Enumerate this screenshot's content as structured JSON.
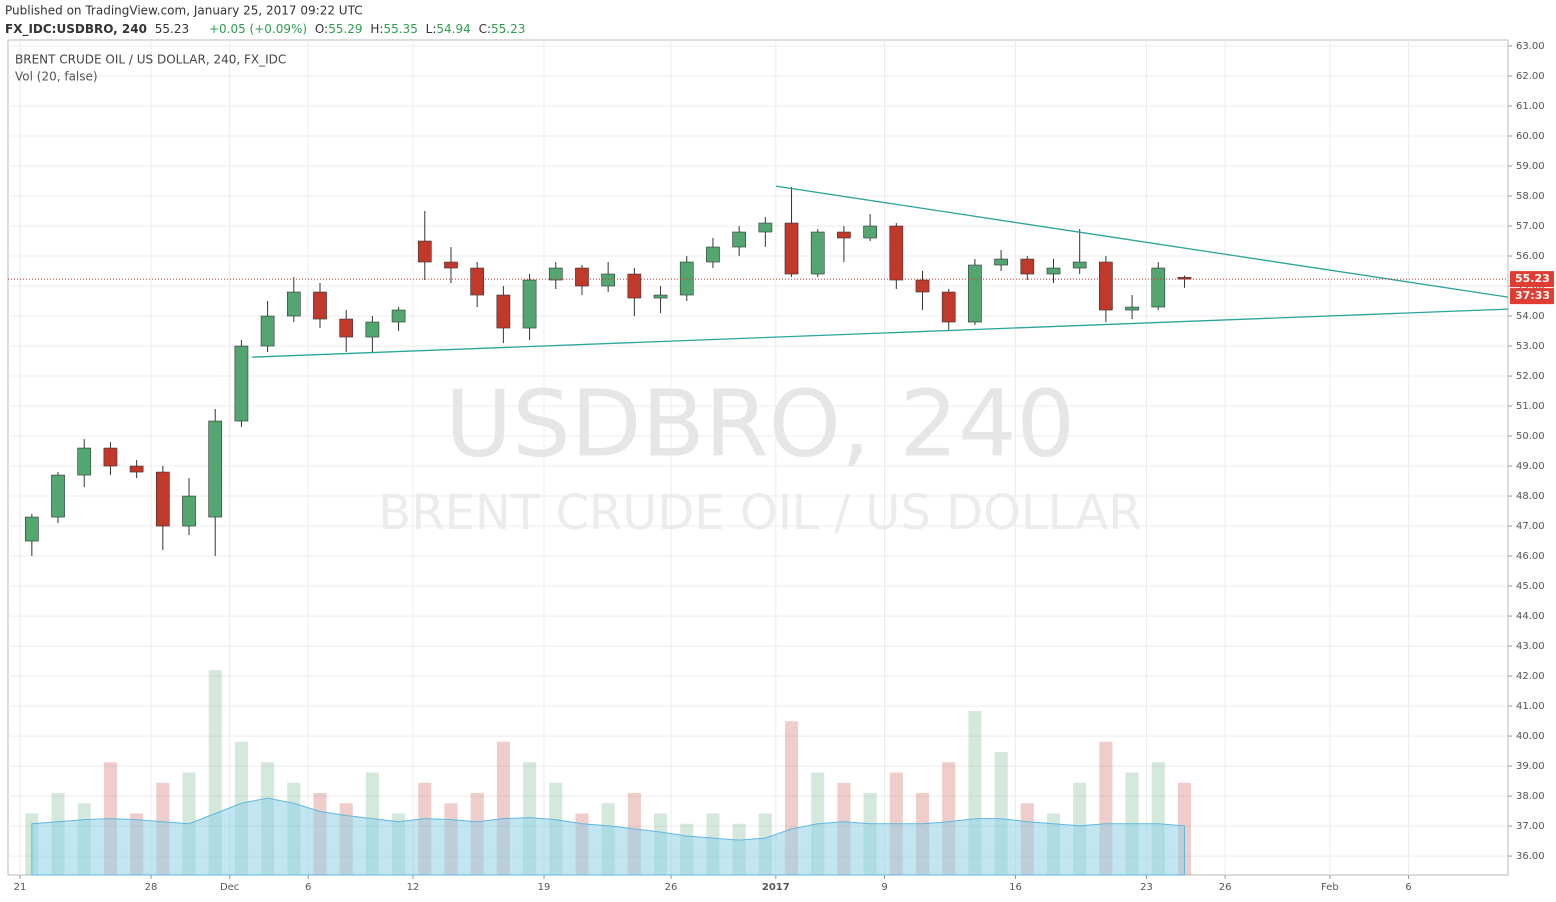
{
  "header": {
    "published": "Published on TradingView.com, January 25, 2017 09:22 UTC",
    "symbol": "FX_IDC:USDBRO, 240",
    "last": 55.23,
    "change": "+0.05 (+0.09%)",
    "ohlc": [
      {
        "label": "O:",
        "value": 55.29
      },
      {
        "label": "H:",
        "value": 55.35
      },
      {
        "label": "L:",
        "value": 54.94
      },
      {
        "label": "C:",
        "value": 55.23
      }
    ]
  },
  "chart_data": {
    "type": "candlestick",
    "title": "BRENT CRUDE OIL / US DOLLAR, 240, FX_IDC",
    "subtitle": "Vol (20, false)",
    "watermark": [
      "USDBRO, 240",
      "BRENT CRUDE OIL / US DOLLAR"
    ],
    "up_color": "#53a66f",
    "down_color": "#c0392b",
    "candles": [
      {
        "x": 0.45,
        "open": 46.5,
        "high": 47.4,
        "low": 46.0,
        "close": 47.3,
        "volume": 60
      },
      {
        "x": 1.45,
        "open": 47.3,
        "high": 48.8,
        "low": 47.1,
        "close": 48.7,
        "volume": 80
      },
      {
        "x": 2.45,
        "open": 48.7,
        "high": 49.9,
        "low": 48.3,
        "close": 49.6,
        "volume": 70
      },
      {
        "x": 3.45,
        "open": 49.6,
        "high": 49.8,
        "low": 48.7,
        "close": 49.0,
        "volume": 110
      },
      {
        "x": 4.45,
        "open": 49.0,
        "high": 49.2,
        "low": 48.6,
        "close": 48.8,
        "volume": 60
      },
      {
        "x": 5.45,
        "open": 48.8,
        "high": 49.0,
        "low": 46.2,
        "close": 47.0,
        "volume": 90
      },
      {
        "x": 6.45,
        "open": 47.0,
        "high": 48.6,
        "low": 46.7,
        "close": 48.0,
        "volume": 100
      },
      {
        "x": 7.45,
        "open": 47.3,
        "high": 50.9,
        "low": 46.0,
        "close": 50.5,
        "volume": 200
      },
      {
        "x": 8.45,
        "open": 50.5,
        "high": 53.2,
        "low": 50.3,
        "close": 53.0,
        "volume": 130
      },
      {
        "x": 9.45,
        "open": 53.0,
        "high": 54.5,
        "low": 52.8,
        "close": 54.0,
        "volume": 110
      },
      {
        "x": 10.45,
        "open": 54.0,
        "high": 55.3,
        "low": 53.8,
        "close": 54.8,
        "volume": 90
      },
      {
        "x": 11.45,
        "open": 54.8,
        "high": 55.1,
        "low": 53.6,
        "close": 53.9,
        "volume": 80
      },
      {
        "x": 12.45,
        "open": 53.9,
        "high": 54.2,
        "low": 52.8,
        "close": 53.3,
        "volume": 70
      },
      {
        "x": 13.45,
        "open": 53.3,
        "high": 54.0,
        "low": 52.8,
        "close": 53.8,
        "volume": 100
      },
      {
        "x": 14.45,
        "open": 53.8,
        "high": 54.3,
        "low": 53.5,
        "close": 54.2,
        "volume": 60
      },
      {
        "x": 15.45,
        "open": 56.5,
        "high": 57.5,
        "low": 55.2,
        "close": 55.8,
        "volume": 90
      },
      {
        "x": 16.45,
        "open": 55.8,
        "high": 56.3,
        "low": 55.1,
        "close": 55.6,
        "volume": 70
      },
      {
        "x": 17.45,
        "open": 55.6,
        "high": 55.8,
        "low": 54.3,
        "close": 54.7,
        "volume": 80
      },
      {
        "x": 18.45,
        "open": 54.7,
        "high": 55.0,
        "low": 53.1,
        "close": 53.6,
        "volume": 130
      },
      {
        "x": 19.45,
        "open": 53.6,
        "high": 55.4,
        "low": 53.2,
        "close": 55.2,
        "volume": 110
      },
      {
        "x": 20.45,
        "open": 55.2,
        "high": 55.8,
        "low": 54.9,
        "close": 55.6,
        "volume": 90
      },
      {
        "x": 21.45,
        "open": 55.6,
        "high": 55.7,
        "low": 54.7,
        "close": 55.0,
        "volume": 60
      },
      {
        "x": 22.45,
        "open": 55.0,
        "high": 55.8,
        "low": 54.8,
        "close": 55.4,
        "volume": 70
      },
      {
        "x": 23.45,
        "open": 55.4,
        "high": 55.6,
        "low": 54.0,
        "close": 54.6,
        "volume": 80
      },
      {
        "x": 24.45,
        "open": 54.6,
        "high": 55.0,
        "low": 54.1,
        "close": 54.7,
        "volume": 60
      },
      {
        "x": 25.45,
        "open": 54.7,
        "high": 56.0,
        "low": 54.5,
        "close": 55.8,
        "volume": 50
      },
      {
        "x": 26.45,
        "open": 55.8,
        "high": 56.6,
        "low": 55.6,
        "close": 56.3,
        "volume": 60
      },
      {
        "x": 27.45,
        "open": 56.3,
        "high": 57.0,
        "low": 56.0,
        "close": 56.8,
        "volume": 50
      },
      {
        "x": 28.45,
        "open": 56.8,
        "high": 57.3,
        "low": 56.3,
        "close": 57.1,
        "volume": 60
      },
      {
        "x": 29.45,
        "open": 57.1,
        "high": 58.3,
        "low": 55.3,
        "close": 55.4,
        "volume": 150
      },
      {
        "x": 30.45,
        "open": 55.4,
        "high": 56.9,
        "low": 55.3,
        "close": 56.8,
        "volume": 100
      },
      {
        "x": 31.45,
        "open": 56.8,
        "high": 57.0,
        "low": 55.8,
        "close": 56.6,
        "volume": 90
      },
      {
        "x": 32.45,
        "open": 56.6,
        "high": 57.4,
        "low": 56.5,
        "close": 57.0,
        "volume": 80
      },
      {
        "x": 33.45,
        "open": 57.0,
        "high": 57.1,
        "low": 54.9,
        "close": 55.2,
        "volume": 100
      },
      {
        "x": 34.45,
        "open": 55.2,
        "high": 55.5,
        "low": 54.2,
        "close": 54.8,
        "volume": 80
      },
      {
        "x": 35.45,
        "open": 54.8,
        "high": 54.9,
        "low": 53.5,
        "close": 53.8,
        "volume": 110
      },
      {
        "x": 36.45,
        "open": 53.8,
        "high": 55.9,
        "low": 53.7,
        "close": 55.7,
        "volume": 160
      },
      {
        "x": 37.45,
        "open": 55.7,
        "high": 56.2,
        "low": 55.5,
        "close": 55.9,
        "volume": 120
      },
      {
        "x": 38.45,
        "open": 55.9,
        "high": 56.0,
        "low": 55.2,
        "close": 55.4,
        "volume": 70
      },
      {
        "x": 39.45,
        "open": 55.4,
        "high": 55.9,
        "low": 55.1,
        "close": 55.6,
        "volume": 60
      },
      {
        "x": 40.45,
        "open": 55.6,
        "high": 56.9,
        "low": 55.4,
        "close": 55.8,
        "volume": 90
      },
      {
        "x": 41.45,
        "open": 55.8,
        "high": 56.0,
        "low": 53.8,
        "close": 54.2,
        "volume": 130
      },
      {
        "x": 42.45,
        "open": 54.2,
        "high": 54.7,
        "low": 53.9,
        "close": 54.3,
        "volume": 100
      },
      {
        "x": 43.45,
        "open": 54.3,
        "high": 55.8,
        "low": 54.2,
        "close": 55.6,
        "volume": 110
      },
      {
        "x": 44.45,
        "open": 55.29,
        "high": 55.35,
        "low": 54.94,
        "close": 55.23,
        "volume": 90
      }
    ],
    "volume_ma": [
      50,
      52,
      54,
      55,
      54,
      52,
      50,
      60,
      70,
      75,
      70,
      62,
      58,
      55,
      52,
      55,
      54,
      52,
      55,
      56,
      54,
      50,
      48,
      45,
      42,
      38,
      36,
      34,
      36,
      45,
      50,
      52,
      50,
      50,
      50,
      52,
      55,
      55,
      52,
      50,
      48,
      50,
      50,
      50,
      48
    ],
    "volume_color": "#8fcfe8",
    "trendlines": [
      {
        "x": [
          28.85,
          56.8
        ],
        "y": [
          58.33,
          54.63
        ],
        "color": "#2aa59a"
      },
      {
        "x": [
          8.85,
          56.8
        ],
        "y": [
          52.63,
          54.23
        ],
        "color": "#2aa59a"
      }
    ],
    "last_price": {
      "value": 55.23,
      "label": "55.23"
    },
    "countdown": "37:33",
    "xlim": [
      -0.46,
      56.8
    ],
    "ylim": [
      35.37,
      63.2
    ],
    "grid": true,
    "xticks": [
      {
        "value": 0,
        "label": "21"
      },
      {
        "value": 5,
        "label": "28"
      },
      {
        "value": 8,
        "label": "Dec"
      },
      {
        "value": 11,
        "label": "6"
      },
      {
        "value": 15,
        "label": "12"
      },
      {
        "value": 20,
        "label": "19"
      },
      {
        "value": 24.85,
        "label": "26"
      },
      {
        "value": 28.85,
        "label": "2017"
      },
      {
        "value": 33,
        "label": "9"
      },
      {
        "value": 38,
        "label": "16"
      },
      {
        "value": 43,
        "label": "23"
      },
      {
        "value": 46,
        "label": "26"
      },
      {
        "value": 50,
        "label": "Feb"
      },
      {
        "value": 53,
        "label": "6"
      }
    ],
    "yticks": [
      {
        "value": 36,
        "label": "36.00"
      },
      {
        "value": 37,
        "label": "37.00"
      },
      {
        "value": 38,
        "label": "38.00"
      },
      {
        "value": 39,
        "label": "39.00"
      },
      {
        "value": 40,
        "label": "40.00"
      },
      {
        "value": 41,
        "label": "41.00"
      },
      {
        "value": 42,
        "label": "42.00"
      },
      {
        "value": 43,
        "label": "43.00"
      },
      {
        "value": 44,
        "label": "44.00"
      },
      {
        "value": 45,
        "label": "45.00"
      },
      {
        "value": 46,
        "label": "46.00"
      },
      {
        "value": 47,
        "label": "47.00"
      },
      {
        "value": 48,
        "label": "48.00"
      },
      {
        "value": 49,
        "label": "49.00"
      },
      {
        "value": 50,
        "label": "50.00"
      },
      {
        "value": 51,
        "label": "51.00"
      },
      {
        "value": 52,
        "label": "52.00"
      },
      {
        "value": 53,
        "label": "53.00"
      },
      {
        "value": 54,
        "label": "54.00"
      },
      {
        "value": 55,
        "label": "55.00"
      },
      {
        "value": 56,
        "label": "56.00"
      },
      {
        "value": 57,
        "label": "57.00"
      },
      {
        "value": 58,
        "label": "58.00"
      },
      {
        "value": 59,
        "label": "59.00"
      },
      {
        "value": 60,
        "label": "60.00"
      },
      {
        "value": 61,
        "label": "61.00"
      },
      {
        "value": 62,
        "label": "62.00"
      },
      {
        "value": 63,
        "label": "63.00"
      }
    ]
  }
}
